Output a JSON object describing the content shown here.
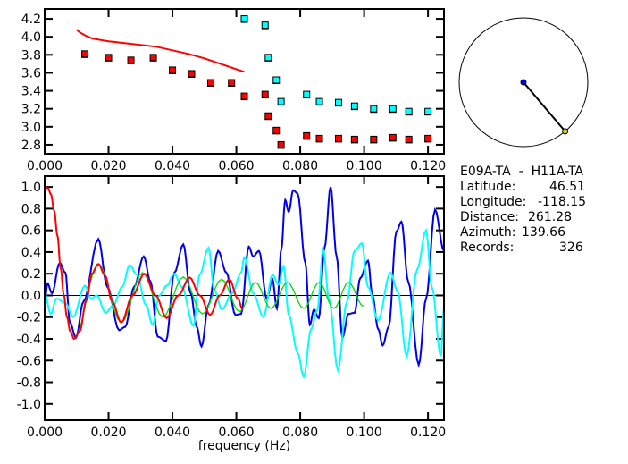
{
  "chart_data": [
    {
      "type": "scatter",
      "xlim": [
        0,
        0.125
      ],
      "ylim": [
        2.7,
        4.31
      ],
      "xticks": [
        "0.000",
        "0.020",
        "0.040",
        "0.060",
        "0.080",
        "0.100",
        "0.120"
      ],
      "yticks": [
        "2.8",
        "3.0",
        "3.2",
        "3.4",
        "3.6",
        "3.8",
        "4.0",
        "4.2"
      ],
      "grid": false,
      "series": [
        {
          "style": "line",
          "color": "#ff0000",
          "x": [
            0.01,
            0.011,
            0.012,
            0.013,
            0.015,
            0.02,
            0.025,
            0.03,
            0.035,
            0.04,
            0.045,
            0.05,
            0.055,
            0.06,
            0.0625
          ],
          "y": [
            4.08,
            4.05,
            4.03,
            4.01,
            3.98,
            3.95,
            3.93,
            3.91,
            3.89,
            3.85,
            3.81,
            3.76,
            3.7,
            3.64,
            3.61
          ]
        },
        {
          "style": "square",
          "color": "#ff0000",
          "x": [
            0.0126,
            0.02,
            0.027,
            0.034,
            0.04,
            0.046,
            0.052,
            0.0585,
            0.0625,
            0.069,
            0.07,
            0.0725,
            0.074,
            0.082,
            0.086,
            0.092,
            0.097,
            0.103,
            0.109,
            0.114,
            0.12
          ],
          "y": [
            3.81,
            3.77,
            3.74,
            3.77,
            3.63,
            3.59,
            3.49,
            3.49,
            3.34,
            3.36,
            3.12,
            2.96,
            2.8,
            2.9,
            2.87,
            2.87,
            2.86,
            2.86,
            2.88,
            2.86,
            2.87
          ]
        },
        {
          "style": "square",
          "color": "#00ffff",
          "x": [
            0.0625,
            0.069,
            0.07,
            0.0725,
            0.074,
            0.082,
            0.086,
            0.092,
            0.097,
            0.103,
            0.109,
            0.114,
            0.12
          ],
          "y": [
            4.2,
            4.13,
            3.77,
            3.52,
            3.28,
            3.36,
            3.28,
            3.27,
            3.23,
            3.2,
            3.2,
            3.17,
            3.17
          ]
        }
      ]
    },
    {
      "type": "line",
      "xlabel": "frequency (Hz)",
      "xlim": [
        0,
        0.125
      ],
      "ylim": [
        -1.15,
        1.1
      ],
      "xticks": [
        "0.000",
        "0.020",
        "0.040",
        "0.060",
        "0.080",
        "0.100",
        "0.120"
      ],
      "yticks": [
        "1.0",
        "0.8",
        "0.6",
        "0.4",
        "0.2",
        "0.0",
        "-0.2",
        "-0.4",
        "-0.6",
        "-0.8",
        "-1.0"
      ],
      "zero_line": true,
      "grid": false,
      "series": [
        {
          "color": "#0000ee",
          "x": [
            0,
            0.0009,
            0.0023,
            0.0047,
            0.0065,
            0.0079,
            0.0098,
            0.0121,
            0.0168,
            0.0196,
            0.0233,
            0.0252,
            0.028,
            0.031,
            0.0331,
            0.0354,
            0.038,
            0.0406,
            0.0434,
            0.0457,
            0.0476,
            0.0491,
            0.0513,
            0.0543,
            0.0569,
            0.0597,
            0.0615,
            0.0639,
            0.0653,
            0.0671,
            0.0695,
            0.0713,
            0.0727,
            0.0741,
            0.0753,
            0.0764,
            0.0778,
            0.0792,
            0.0816,
            0.083,
            0.0843,
            0.0858,
            0.0876,
            0.0895,
            0.0914,
            0.0932,
            0.0951,
            0.097,
            0.0988,
            0.1012,
            0.1026,
            0.1044,
            0.1058,
            0.1077,
            0.1101,
            0.1117,
            0.1138,
            0.1171,
            0.1194,
            0.1222,
            0.125
          ],
          "y": [
            -0.06,
            0.11,
            0.02,
            0.3,
            0.21,
            -0.25,
            -0.39,
            -0.06,
            0.52,
            0.08,
            -0.32,
            -0.29,
            0.08,
            0.36,
            0.13,
            -0.38,
            -0.42,
            0.21,
            0.47,
            0.02,
            -0.29,
            -0.47,
            -0.09,
            0.41,
            0.21,
            -0.18,
            -0.17,
            0.45,
            0.36,
            0.41,
            -0.03,
            0.15,
            -0.12,
            0.43,
            0.88,
            0.77,
            0.97,
            0.94,
            0.3,
            -0.27,
            -0.13,
            -0.21,
            0.44,
            1.0,
            0.36,
            -0.39,
            -0.17,
            -0.16,
            0.16,
            0.32,
            0.0,
            -0.31,
            -0.46,
            -0.29,
            0.59,
            0.68,
            0.13,
            -0.64,
            -0.03,
            0.79,
            0.41
          ]
        },
        {
          "color": "#00ffff",
          "x": [
            0,
            0.0019,
            0.0037,
            0.0065,
            0.0089,
            0.0126,
            0.0145,
            0.0163,
            0.0191,
            0.0215,
            0.0243,
            0.0266,
            0.0289,
            0.0317,
            0.0338,
            0.0359,
            0.0382,
            0.0406,
            0.0429,
            0.0466,
            0.0485,
            0.0513,
            0.0531,
            0.0555,
            0.0587,
            0.0615,
            0.0625,
            0.0653,
            0.0685,
            0.0713,
            0.0732,
            0.0748,
            0.0764,
            0.0792,
            0.0811,
            0.0834,
            0.0853,
            0.0872,
            0.089,
            0.0918,
            0.0946,
            0.097,
            0.0993,
            0.1012,
            0.1044,
            0.1082,
            0.1105,
            0.1133,
            0.1166,
            0.1194,
            0.1212,
            0.124,
            0.125
          ],
          "y": [
            0.02,
            -0.17,
            -0.03,
            -0.07,
            -0.2,
            0.09,
            -0.03,
            0.0,
            -0.16,
            -0.09,
            0.08,
            0.28,
            0.19,
            -0.09,
            -0.27,
            0.0,
            0.09,
            0.2,
            0.08,
            -0.28,
            0.19,
            0.44,
            0.05,
            -0.13,
            0.02,
            0.21,
            0.35,
            0.02,
            -0.2,
            0.19,
            0.1,
            0.27,
            -0.18,
            -0.53,
            -0.75,
            -0.31,
            -0.14,
            0.42,
            -0.03,
            -0.69,
            -0.06,
            0.41,
            0.48,
            0.08,
            -0.23,
            0.21,
            0.04,
            -0.56,
            0.24,
            0.6,
            0.08,
            -0.56,
            -0.12
          ]
        },
        {
          "color": "#00dd00",
          "x": [
            0.0092,
            0.0168,
            0.024,
            0.0306,
            0.037,
            0.0434,
            0.0494,
            0.0554,
            0.061,
            0.066,
            0.0708,
            0.076,
            0.0811,
            0.0859,
            0.0905,
            0.0951,
            0.0998
          ],
          "y": [
            -0.4,
            0.29,
            -0.25,
            0.21,
            -0.2,
            0.17,
            -0.17,
            0.15,
            -0.15,
            0.12,
            -0.12,
            0.12,
            -0.12,
            0.12,
            -0.12,
            0.12,
            -0.1
          ]
        },
        {
          "color": "#ff0000",
          "x": [
            0,
            0.001,
            0.002,
            0.003,
            0.004,
            0.005,
            0.006,
            0.007,
            0.008,
            0.0092,
            0.011,
            0.013,
            0.0148,
            0.0168,
            0.019,
            0.021,
            0.024,
            0.0275,
            0.0312,
            0.0347,
            0.0382,
            0.0418,
            0.0454,
            0.0486,
            0.0518,
            0.0548,
            0.0578,
            0.0605,
            0.062
          ],
          "y": [
            1.0,
            0.99,
            0.93,
            0.78,
            0.55,
            0.25,
            0.0,
            -0.2,
            -0.33,
            -0.4,
            -0.33,
            -0.05,
            0.2,
            0.29,
            0.18,
            -0.05,
            -0.25,
            0.0,
            0.2,
            0.0,
            -0.21,
            0.0,
            0.165,
            0.0,
            -0.18,
            0.0,
            0.15,
            -0.03,
            -0.13
          ]
        }
      ]
    }
  ],
  "map": {
    "azimuth": 139.66
  },
  "info": {
    "title": "E09A-TA  -  H11A-TA",
    "latitude_label": "Latitude:",
    "latitude": "46.51",
    "longitude_label": "Longitude:",
    "longitude": "-118.15",
    "distance_label": "Distance:",
    "distance": "261.28",
    "azimuth_label": "Azimuth:",
    "azimuth": "139.66",
    "records_label": "Records:",
    "records": "326"
  }
}
